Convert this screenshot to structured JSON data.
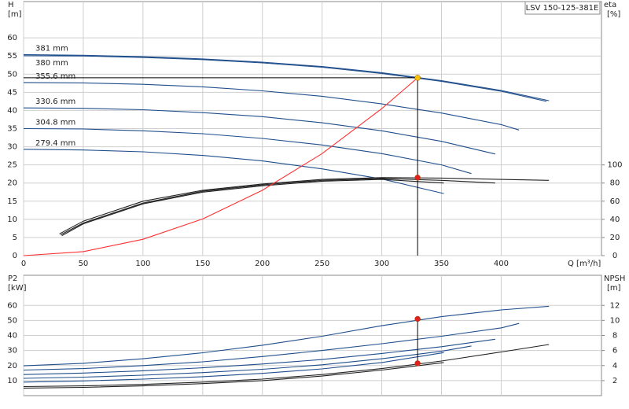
{
  "chart_data": [
    {
      "type": "line",
      "title": "LSV 150-125-381E",
      "x_label": "Q [m³/h]",
      "y_label": "H",
      "y_unit": "[m]",
      "y2_label": "eta",
      "y2_unit": "[%]",
      "xlim": [
        0,
        484
      ],
      "xticks": [
        0,
        50,
        100,
        150,
        200,
        250,
        300,
        350,
        400
      ],
      "ylim": [
        0,
        70
      ],
      "yticks": [
        0,
        5,
        10,
        15,
        20,
        25,
        30,
        35,
        40,
        45,
        50,
        55,
        60
      ],
      "y2lim": [
        0,
        280
      ],
      "y2ticks": [
        0,
        20,
        40,
        60,
        80,
        100
      ],
      "grid": true,
      "series": [
        {
          "name": "381 mm",
          "color": "#1f4e8c",
          "x": [
            0,
            50,
            100,
            150,
            200,
            250,
            300,
            350,
            400,
            440
          ],
          "values": [
            55.4,
            55.2,
            54.8,
            54.2,
            53.3,
            52.1,
            50.4,
            48.2,
            45.5,
            42.7
          ]
        },
        {
          "name": "380 mm",
          "color": "#1f4e8c",
          "x": [
            0,
            50,
            100,
            150,
            200,
            250,
            300,
            350,
            400,
            438
          ],
          "values": [
            55.1,
            55.0,
            54.6,
            54.0,
            53.1,
            51.9,
            50.2,
            48.0,
            45.3,
            42.5
          ]
        },
        {
          "name": "355.6 mm",
          "color": "#1f4e8c",
          "x": [
            0,
            50,
            100,
            150,
            200,
            250,
            300,
            350,
            400,
            415
          ],
          "values": [
            47.7,
            47.6,
            47.2,
            46.5,
            45.4,
            43.9,
            41.8,
            39.3,
            36.1,
            34.6
          ]
        },
        {
          "name": "330.6 mm",
          "color": "#1f4e8c",
          "x": [
            0,
            50,
            100,
            150,
            200,
            250,
            300,
            350,
            395
          ],
          "values": [
            40.7,
            40.6,
            40.2,
            39.4,
            38.3,
            36.6,
            34.4,
            31.5,
            28.0
          ]
        },
        {
          "name": "304.8 mm",
          "color": "#1f4e8c",
          "x": [
            0,
            50,
            100,
            150,
            200,
            250,
            300,
            350,
            375
          ],
          "values": [
            35.0,
            34.9,
            34.4,
            33.6,
            32.3,
            30.5,
            28.1,
            25.0,
            22.6
          ]
        },
        {
          "name": "279.4 mm",
          "color": "#1f4e8c",
          "x": [
            0,
            50,
            100,
            150,
            200,
            250,
            300,
            352
          ],
          "values": [
            29.3,
            29.1,
            28.6,
            27.6,
            26.1,
            23.9,
            21.1,
            17.1
          ]
        },
        {
          "color": "#222222",
          "axis": "y2",
          "x": [
            30,
            50,
            100,
            150,
            200,
            250,
            300,
            350,
            400,
            440
          ],
          "values": [
            24,
            38,
            60,
            72,
            79,
            84,
            86,
            85.5,
            84,
            83
          ]
        },
        {
          "color": "#222222",
          "axis": "y2",
          "x": [
            31,
            50,
            100,
            150,
            200,
            250,
            300,
            350,
            395
          ],
          "values": [
            23,
            36,
            58,
            71,
            78,
            83,
            85,
            83,
            80
          ]
        },
        {
          "color": "#222222",
          "axis": "y2",
          "x": [
            32,
            50,
            100,
            150,
            200,
            250,
            300,
            352
          ],
          "values": [
            22,
            35,
            57,
            70,
            77,
            82,
            84,
            80
          ]
        },
        {
          "color": "#ff3030",
          "x": [
            0,
            50,
            100,
            150,
            200,
            250,
            300,
            330
          ],
          "values": [
            0,
            1.1,
            4.5,
            10.1,
            18,
            28.1,
            40.5,
            49
          ]
        }
      ],
      "markers": [
        {
          "x": 330,
          "y": 49,
          "color": "#f5c400",
          "guide": true
        },
        {
          "x": 330,
          "y": 86,
          "axis": "y2",
          "color": "#e02020"
        }
      ]
    },
    {
      "type": "line",
      "y_label": "P2",
      "y_unit": "[kW]",
      "y2_label": "NPSH",
      "y2_unit": "[m]",
      "xlim": [
        0,
        484
      ],
      "xticks": [
        0,
        50,
        100,
        150,
        200,
        250,
        300,
        350,
        400
      ],
      "ylim": [
        0,
        80
      ],
      "yticks": [
        10,
        20,
        30,
        40,
        50,
        60
      ],
      "y2lim": [
        0,
        16
      ],
      "y2ticks": [
        2,
        4,
        6,
        8,
        10,
        12
      ],
      "grid": true,
      "series": [
        {
          "color": "#1f4e8c",
          "x": [
            0,
            50,
            100,
            150,
            200,
            250,
            300,
            350,
            400,
            440
          ],
          "values": [
            19.8,
            21.5,
            24.5,
            28.5,
            33.5,
            39.5,
            46.5,
            52.5,
            57,
            59.4
          ]
        },
        {
          "color": "#1f4e8c",
          "x": [
            0,
            50,
            100,
            150,
            200,
            250,
            300,
            350,
            400,
            415
          ],
          "values": [
            17,
            18,
            20,
            22.5,
            26,
            30,
            34.5,
            39.5,
            45,
            48
          ]
        },
        {
          "color": "#1f4e8c",
          "x": [
            0,
            50,
            100,
            150,
            200,
            250,
            300,
            350,
            395
          ],
          "values": [
            14,
            15,
            16.5,
            18.5,
            21,
            24,
            28,
            32.5,
            37.5
          ]
        },
        {
          "color": "#1f4e8c",
          "x": [
            0,
            50,
            100,
            150,
            200,
            250,
            300,
            350,
            375
          ],
          "values": [
            11.5,
            12.3,
            13.6,
            15.3,
            17.5,
            20.5,
            24.5,
            29.5,
            33
          ]
        },
        {
          "color": "#1f4e8c",
          "x": [
            0,
            50,
            100,
            150,
            200,
            250,
            300,
            352
          ],
          "values": [
            9,
            9.8,
            11,
            12.6,
            14.8,
            17.8,
            22,
            28.6
          ]
        },
        {
          "color": "#222222",
          "axis": "y2",
          "x": [
            0,
            50,
            100,
            150,
            200,
            250,
            300,
            350,
            400,
            440
          ],
          "values": [
            1.2,
            1.3,
            1.5,
            1.8,
            2.2,
            2.8,
            3.6,
            4.6,
            5.8,
            6.8
          ]
        },
        {
          "color": "#222222",
          "axis": "y2",
          "x": [
            0,
            50,
            100,
            150,
            200,
            250,
            300,
            352
          ],
          "values": [
            1.0,
            1.1,
            1.3,
            1.6,
            2.0,
            2.6,
            3.4,
            4.4
          ]
        }
      ],
      "markers": [
        {
          "x": 330,
          "y": 51,
          "color": "#e02020",
          "guide": true
        },
        {
          "x": 330,
          "y": 4.3,
          "axis": "y2",
          "color": "#e02020"
        }
      ]
    }
  ]
}
